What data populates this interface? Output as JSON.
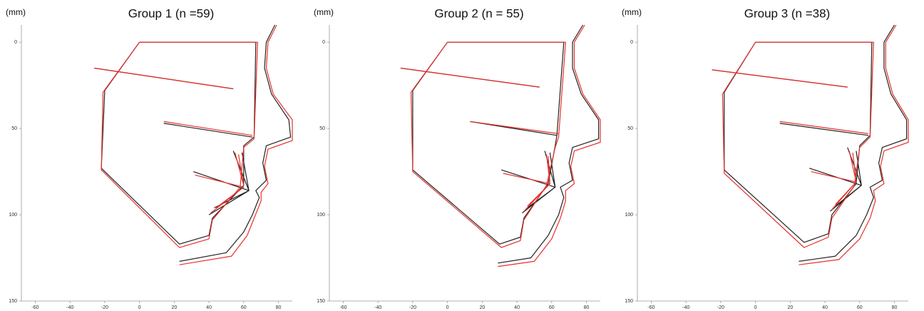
{
  "chart_data": [
    {
      "type": "line",
      "title": "Group 1 (n =59)",
      "ylabel": "(mm)",
      "xlim": [
        -68,
        88
      ],
      "ylim": [
        150,
        -10
      ],
      "xticks": [
        -60,
        -40,
        -20,
        0,
        20,
        40,
        60,
        80
      ],
      "yticks": [
        0,
        50,
        100,
        150
      ],
      "series": [
        {
          "color": "#222222",
          "x": [
            0,
            67,
            66,
            60,
            60,
            42,
            40,
            23,
            -22,
            -20,
            0,
            null,
            -26,
            54,
            null,
            14,
            65,
            null,
            54,
            63,
            59,
            null,
            40,
            63,
            43,
            null,
            31,
            63,
            null,
            78,
            73,
            72,
            76,
            86,
            87,
            73,
            71,
            73,
            67,
            69,
            65,
            60,
            50,
            23
          ],
          "values": [
            0,
            0,
            55,
            60,
            83,
            102,
            112,
            117,
            73,
            28,
            0,
            null,
            15,
            27,
            null,
            47,
            55,
            null,
            63,
            86,
            64,
            null,
            100,
            86,
            96,
            null,
            75,
            86,
            null,
            -10,
            0,
            15,
            30,
            45,
            55,
            60,
            70,
            80,
            86,
            90,
            100,
            110,
            122,
            127
          ]
        },
        {
          "color": "#e8302c",
          "x": [
            0,
            68,
            66,
            60,
            58,
            42,
            40,
            23,
            -22,
            -21,
            0,
            null,
            -26,
            54,
            null,
            14,
            65,
            null,
            55,
            60,
            57,
            null,
            41,
            60,
            44,
            null,
            32,
            60,
            null,
            79,
            74,
            73,
            77,
            88,
            88,
            74,
            72,
            74,
            70,
            70,
            66,
            62,
            53,
            23
          ],
          "values": [
            0,
            0,
            56,
            61,
            84,
            103,
            114,
            119,
            74,
            29,
            0,
            null,
            15,
            27,
            null,
            46,
            54,
            null,
            64,
            83,
            65,
            null,
            99,
            84,
            96,
            null,
            77,
            84,
            null,
            -10,
            0,
            15,
            30,
            45,
            57,
            62,
            72,
            82,
            87,
            92,
            102,
            112,
            124,
            129
          ]
        }
      ]
    },
    {
      "type": "line",
      "title": "Group 2 (n = 55)",
      "ylabel": "(mm)",
      "xlim": [
        -68,
        88
      ],
      "ylim": [
        150,
        -10
      ],
      "xticks": [
        -60,
        -40,
        -20,
        0,
        20,
        40,
        60,
        80
      ],
      "yticks": [
        0,
        50,
        100,
        150
      ],
      "series": [
        {
          "color": "#222222",
          "x": [
            0,
            67,
            63,
            62,
            58,
            44,
            42,
            30,
            -20,
            -20,
            0,
            null,
            -27,
            53,
            null,
            13,
            63,
            null,
            56,
            62,
            59,
            null,
            43,
            62,
            46,
            null,
            31,
            62,
            null,
            78,
            72,
            72,
            77,
            87,
            87,
            72,
            70,
            72,
            65,
            67,
            64,
            58,
            48,
            29
          ],
          "values": [
            0,
            0,
            54,
            60,
            82,
            102,
            113,
            117,
            74,
            28,
            0,
            null,
            15,
            26,
            null,
            46,
            54,
            null,
            63,
            84,
            64,
            null,
            99,
            84,
            96,
            null,
            74,
            84,
            null,
            -10,
            0,
            15,
            30,
            45,
            56,
            61,
            70,
            80,
            84,
            90,
            100,
            112,
            125,
            128
          ]
        },
        {
          "color": "#e8302c",
          "x": [
            0,
            68,
            64,
            62,
            57,
            44,
            42,
            31,
            -20,
            -21,
            0,
            null,
            -27,
            53,
            null,
            13,
            64,
            null,
            57,
            59,
            58,
            null,
            44,
            59,
            46,
            null,
            32,
            59,
            null,
            79,
            73,
            73,
            78,
            88,
            88,
            73,
            71,
            73,
            68,
            68,
            65,
            60,
            50,
            29
          ],
          "values": [
            0,
            0,
            55,
            61,
            83,
            103,
            115,
            119,
            75,
            29,
            0,
            null,
            15,
            26,
            null,
            46,
            53,
            null,
            65,
            82,
            66,
            null,
            98,
            82,
            95,
            null,
            76,
            82,
            null,
            -10,
            0,
            15,
            30,
            45,
            58,
            63,
            72,
            82,
            86,
            92,
            102,
            114,
            127,
            130
          ]
        }
      ]
    },
    {
      "type": "line",
      "title": "Group 3 (n =38)",
      "ylabel": "(mm)",
      "xlim": [
        -68,
        88
      ],
      "ylim": [
        150,
        -10
      ],
      "xticks": [
        -60,
        -40,
        -20,
        0,
        20,
        40,
        60,
        80
      ],
      "yticks": [
        0,
        50,
        100,
        150
      ],
      "series": [
        {
          "color": "#222222",
          "x": [
            0,
            67,
            66,
            60,
            58,
            44,
            42,
            28,
            -18,
            -18,
            0,
            null,
            -25,
            53,
            null,
            14,
            65,
            null,
            53,
            61,
            58,
            null,
            43,
            61,
            46,
            null,
            31,
            61,
            null,
            80,
            74,
            74,
            78,
            87,
            87,
            73,
            71,
            73,
            66,
            68,
            64,
            58,
            46,
            25
          ],
          "values": [
            0,
            0,
            54,
            60,
            82,
            100,
            111,
            116,
            74,
            29,
            0,
            null,
            16,
            26,
            null,
            47,
            54,
            null,
            61,
            83,
            63,
            null,
            98,
            83,
            95,
            null,
            73,
            83,
            null,
            -10,
            0,
            15,
            30,
            45,
            56,
            61,
            70,
            80,
            84,
            90,
            100,
            112,
            124,
            127
          ]
        },
        {
          "color": "#e8302c",
          "x": [
            0,
            68,
            66,
            60,
            57,
            44,
            42,
            28,
            -18,
            -19,
            0,
            null,
            -25,
            53,
            null,
            14,
            65,
            null,
            54,
            58,
            56,
            null,
            44,
            58,
            46,
            null,
            32,
            58,
            null,
            81,
            75,
            75,
            79,
            88,
            88,
            74,
            72,
            74,
            68,
            69,
            66,
            60,
            48,
            25
          ],
          "values": [
            0,
            0,
            55,
            61,
            83,
            102,
            113,
            119,
            76,
            30,
            0,
            null,
            16,
            26,
            null,
            46,
            53,
            null,
            63,
            81,
            64,
            null,
            97,
            81,
            94,
            null,
            75,
            81,
            null,
            -10,
            0,
            15,
            30,
            45,
            58,
            63,
            72,
            82,
            86,
            92,
            102,
            114,
            126,
            129
          ]
        }
      ]
    }
  ]
}
